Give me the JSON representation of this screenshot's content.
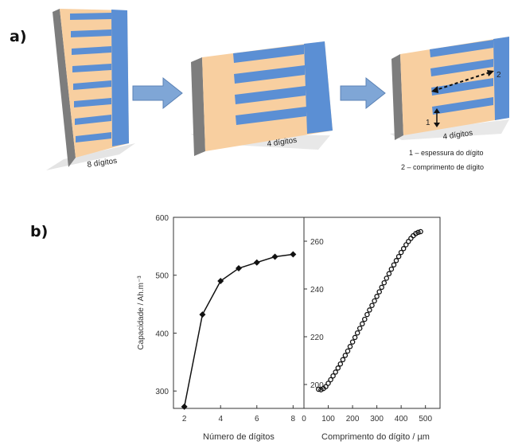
{
  "panel_a": {
    "label": "a)",
    "electrodes": [
      {
        "caption": "8 dígitos",
        "digits": 8
      },
      {
        "caption": "4 dígitos",
        "digits": 4
      },
      {
        "caption": "4 dígitos",
        "digits": 4
      }
    ],
    "markers": {
      "one": "1",
      "two": "2"
    },
    "legend": [
      "1 – espessura do dígito",
      "2 – comprimento de dígito"
    ],
    "colors": {
      "finger": "#5b8fd4",
      "substrate": "#f8cfa0",
      "edge": "#7d7d7d",
      "arrow": "#7fa6d6"
    }
  },
  "panel_b": {
    "label": "b)",
    "ylabel": "Capacidade / Ah.m⁻³"
  },
  "chart_data": [
    {
      "type": "line",
      "xlabel": "Número de dígitos",
      "ylabel": "Capacidade / Ah.m⁻³",
      "xlim": [
        1.4,
        8.6
      ],
      "ylim": [
        270,
        600
      ],
      "xticks": [
        2,
        4,
        6,
        8
      ],
      "yticks": [
        300,
        400,
        500,
        600
      ],
      "x": [
        2,
        3,
        4,
        5,
        6,
        7,
        8
      ],
      "y": [
        273,
        432,
        490,
        512,
        522,
        532,
        536
      ],
      "marker": "diamond",
      "color": "#111111"
    },
    {
      "type": "scatter",
      "xlabel": "Comprimento do dígito / µm",
      "xlim": [
        0,
        560
      ],
      "ylim": [
        190,
        270
      ],
      "xticks": [
        0,
        100,
        200,
        300,
        400,
        500
      ],
      "yticks": [
        200,
        220,
        240,
        260
      ],
      "x": [
        60,
        70,
        80,
        90,
        100,
        110,
        120,
        130,
        140,
        150,
        160,
        170,
        180,
        190,
        200,
        210,
        220,
        230,
        240,
        250,
        260,
        270,
        280,
        290,
        300,
        310,
        320,
        330,
        340,
        350,
        360,
        370,
        380,
        390,
        400,
        410,
        420,
        430,
        440,
        450,
        460,
        470,
        480
      ],
      "y": [
        198.0,
        197.8,
        198.3,
        199.1,
        200.5,
        202.0,
        203.6,
        205.2,
        206.9,
        208.6,
        210.4,
        212.2,
        214.0,
        215.9,
        217.8,
        219.7,
        221.6,
        223.5,
        225.4,
        227.3,
        229.3,
        231.2,
        233.1,
        235.0,
        236.9,
        238.8,
        240.7,
        242.6,
        244.5,
        246.4,
        248.3,
        250.1,
        251.9,
        253.6,
        255.3,
        256.9,
        258.5,
        259.9,
        261.2,
        262.3,
        263.2,
        263.7,
        264.0
      ],
      "marker": "circle",
      "color": "#111111"
    }
  ]
}
